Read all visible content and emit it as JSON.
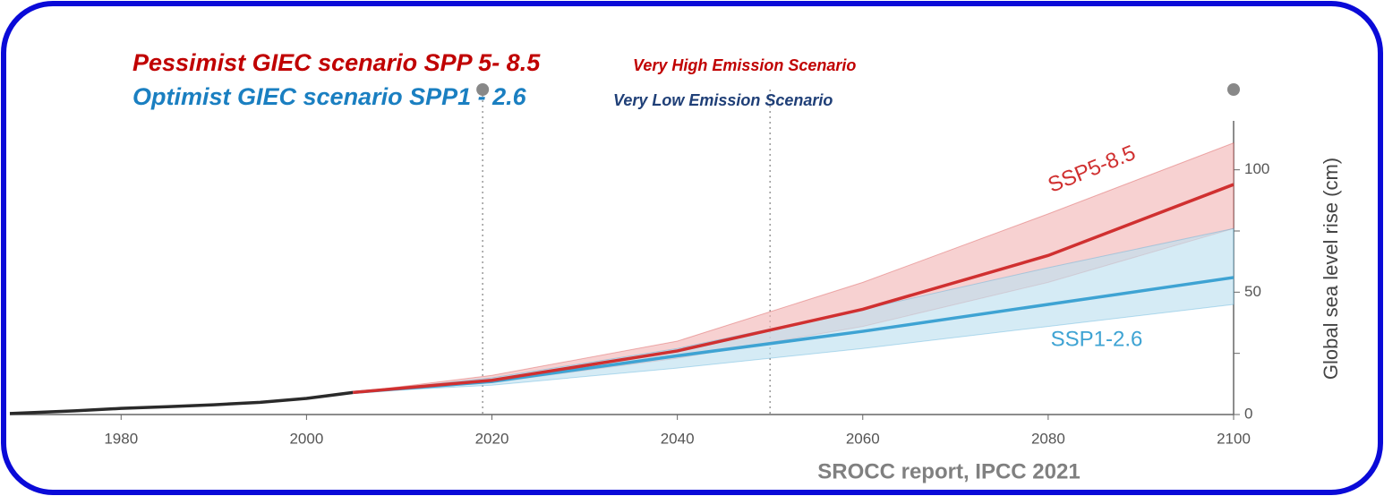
{
  "chart_data": {
    "type": "line",
    "title": "Pessimist GIEC scenario SPP 5- 8.5",
    "title_note": "Very High Emission Scenario",
    "subtitle": "Optimist GIEC scenario SPP1  - 2.6",
    "subtitle_note": "Very Low Emission Scenario",
    "source": "SROCC report, IPCC 2021",
    "ylabel": "Global sea level rise (cm)",
    "xlim": [
      1968,
      2100
    ],
    "xticks": [
      1980,
      2000,
      2020,
      2040,
      2060,
      2080,
      2100
    ],
    "ylim": [
      0,
      120
    ],
    "yticks": [
      0,
      50,
      100
    ],
    "yminor": [
      25,
      75
    ],
    "vlines": [
      2019,
      2050
    ],
    "history": {
      "color": "#2a2a2a",
      "x": [
        1968,
        1975,
        1980,
        1985,
        1990,
        1995,
        2000,
        2005
      ],
      "values": [
        0.4,
        1.5,
        2.5,
        3.2,
        4,
        5,
        6.6,
        9
      ]
    },
    "series": [
      {
        "name": "SSP5-8.5",
        "color": "#d03030",
        "band_color": "#f2b8b8",
        "x": [
          2005,
          2020,
          2040,
          2060,
          2080,
          2100
        ],
        "values": [
          9,
          14,
          26,
          43,
          65,
          94
        ],
        "upper": [
          9,
          16,
          30,
          54,
          82,
          111
        ],
        "lower": [
          9,
          13,
          23,
          36,
          54,
          76
        ]
      },
      {
        "name": "SSP1-2.6",
        "color": "#3ea3d3",
        "band_color": "#bfe0f0",
        "x": [
          2005,
          2020,
          2040,
          2060,
          2080,
          2100
        ],
        "values": [
          9,
          13.5,
          24,
          34,
          45,
          56
        ],
        "upper": [
          9,
          15,
          27,
          43,
          60,
          76
        ],
        "lower": [
          9,
          12,
          19,
          27,
          36,
          45
        ]
      }
    ]
  }
}
